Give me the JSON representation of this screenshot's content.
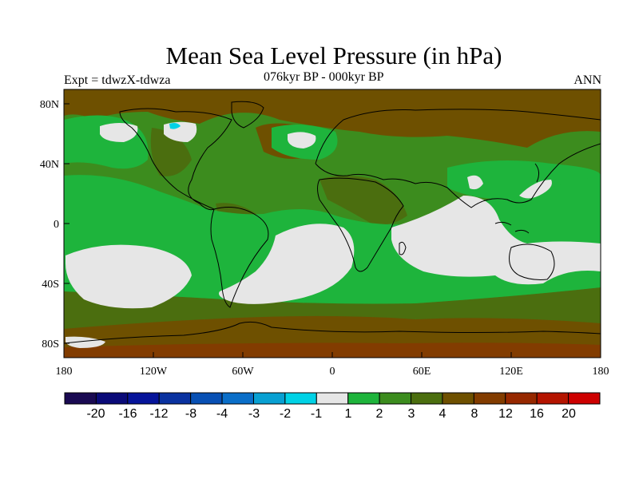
{
  "header": {
    "title": "Mean Sea Level Pressure (in hPa)",
    "experiment": "Expt = tdwzX-tdwza",
    "period": "076kyr BP - 000kyr BP",
    "season": "ANN"
  },
  "axes": {
    "lat_labels": [
      "80N",
      "40N",
      "0",
      "40S",
      "80S"
    ],
    "lon_labels": [
      "180",
      "120W",
      "60W",
      "0",
      "60E",
      "120E",
      "180"
    ]
  },
  "colorbar": {
    "labels": [
      "-20",
      "-16",
      "-12",
      "-8",
      "-4",
      "-3",
      "-2",
      "-1",
      "1",
      "2",
      "3",
      "4",
      "8",
      "12",
      "16",
      "20"
    ],
    "colors": [
      "#1a0a52",
      "#0a0a78",
      "#06149a",
      "#0a32a0",
      "#0850b4",
      "#0a6ec8",
      "#08a0d2",
      "#00d2e6",
      "#e6e6e6",
      "#1eb43c",
      "#3c8c1e",
      "#4b6e0f",
      "#6e5000",
      "#823c00",
      "#962800",
      "#b41400",
      "#cd0000"
    ]
  },
  "colors": {
    "background_field": "#3c8c1e",
    "frame": "#000000"
  }
}
